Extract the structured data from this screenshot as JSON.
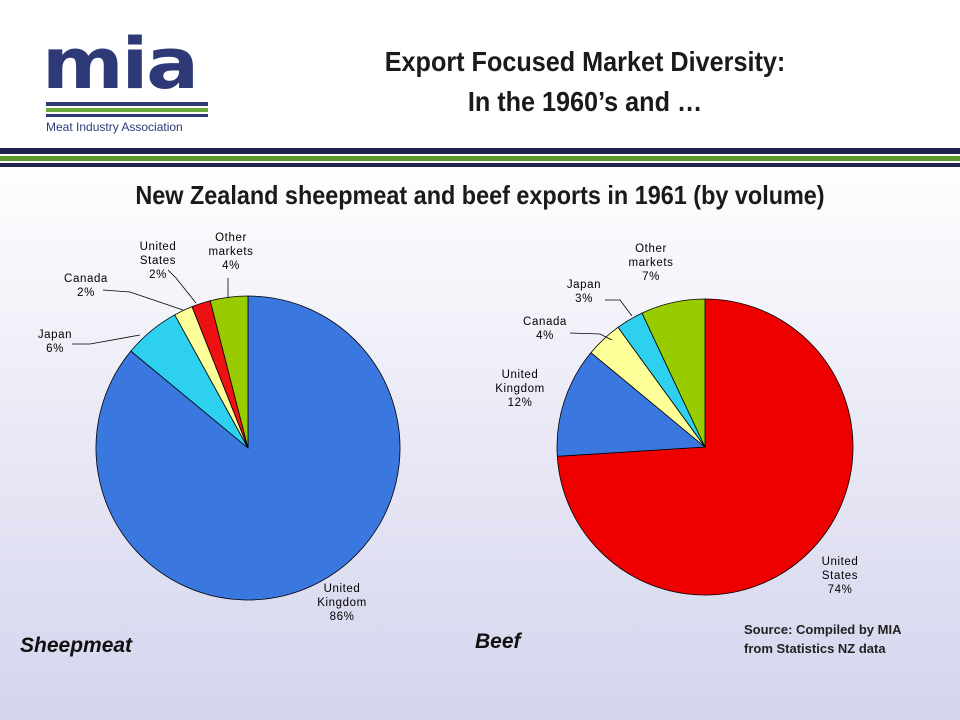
{
  "logo": {
    "word": "mia",
    "subtitle": "Meat Industry Association",
    "color": "#2e3a78",
    "accent": "#6aa83a"
  },
  "header": {
    "title_line1": "Export Focused Market Diversity:",
    "title_line2": "In the 1960’s and …"
  },
  "subtitle": "New Zealand sheepmeat and beef exports in 1961 (by volume)",
  "source": {
    "line1": "Source: Compiled by MIA",
    "line2": "from Statistics NZ data"
  },
  "chart_data": [
    {
      "type": "pie",
      "title": "Sheepmeat",
      "slices": [
        {
          "label": [
            "United",
            "Kingdom"
          ],
          "value": 86,
          "text": "86%",
          "color": "#3a78e0"
        },
        {
          "label": [
            "Japan"
          ],
          "value": 6,
          "text": "6%",
          "color": "#2ed0f0"
        },
        {
          "label": [
            "Canada"
          ],
          "value": 2,
          "text": "2%",
          "color": "#ffff99"
        },
        {
          "label": [
            "United",
            "States"
          ],
          "value": 2,
          "text": "2%",
          "color": "#ee1111"
        },
        {
          "label": [
            "Other",
            "markets"
          ],
          "value": 4,
          "text": "4%",
          "color": "#99cc00"
        }
      ]
    },
    {
      "type": "pie",
      "title": "Beef",
      "slices": [
        {
          "label": [
            "United",
            "States"
          ],
          "value": 74,
          "text": "74%",
          "color": "#ee0000"
        },
        {
          "label": [
            "United",
            "Kingdom"
          ],
          "value": 12,
          "text": "12%",
          "color": "#3a78e0"
        },
        {
          "label": [
            "Canada"
          ],
          "value": 4,
          "text": "4%",
          "color": "#ffff99"
        },
        {
          "label": [
            "Japan"
          ],
          "value": 3,
          "text": "3%",
          "color": "#2ed0f0"
        },
        {
          "label": [
            "Other",
            "markets"
          ],
          "value": 7,
          "text": "7%",
          "color": "#99cc00"
        }
      ]
    }
  ]
}
